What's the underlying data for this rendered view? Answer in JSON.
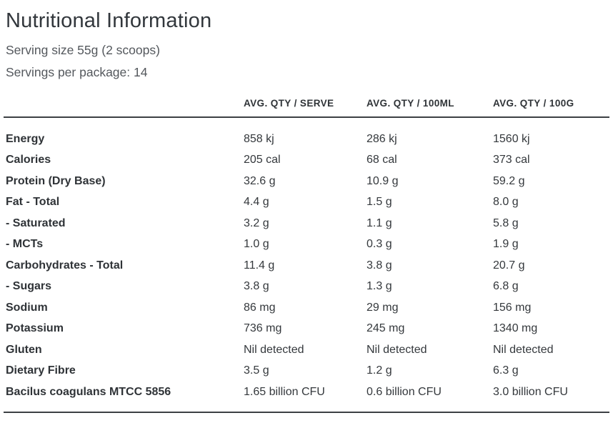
{
  "page": {
    "title": "Nutritional Information",
    "serving_size": "Serving size 55g (2 scoops)",
    "servings_per_package": "Servings per package: 14"
  },
  "table": {
    "columns": [
      "",
      "AVG. QTY / SERVE",
      "AVG. QTY / 100ML",
      "AVG. QTY / 100G"
    ],
    "rows": [
      {
        "label": "Energy",
        "serve": "858 kj",
        "per_100ml": "286 kj",
        "per_100g": "1560 kj"
      },
      {
        "label": "Calories",
        "serve": "205 cal",
        "per_100ml": "68 cal",
        "per_100g": "373 cal"
      },
      {
        "label": "Protein (Dry Base)",
        "serve": "32.6 g",
        "per_100ml": "10.9 g",
        "per_100g": "59.2 g"
      },
      {
        "label": "Fat - Total",
        "serve": "4.4 g",
        "per_100ml": "1.5 g",
        "per_100g": "8.0 g"
      },
      {
        "label": "- Saturated",
        "serve": "3.2 g",
        "per_100ml": "1.1 g",
        "per_100g": "5.8 g"
      },
      {
        "label": "- MCTs",
        "serve": "1.0 g",
        "per_100ml": "0.3 g",
        "per_100g": "1.9 g"
      },
      {
        "label": "Carbohydrates - Total",
        "serve": "11.4 g",
        "per_100ml": "3.8 g",
        "per_100g": "20.7 g"
      },
      {
        "label": "- Sugars",
        "serve": "3.8 g",
        "per_100ml": "1.3 g",
        "per_100g": "6.8 g"
      },
      {
        "label": "Sodium",
        "serve": "86 mg",
        "per_100ml": "29 mg",
        "per_100g": "156 mg"
      },
      {
        "label": "Potassium",
        "serve": "736 mg",
        "per_100ml": "245 mg",
        "per_100g": "1340 mg"
      },
      {
        "label": "Gluten",
        "serve": "Nil detected",
        "per_100ml": "Nil detected",
        "per_100g": "Nil detected"
      },
      {
        "label": "Dietary Fibre",
        "serve": "3.5 g",
        "per_100ml": "1.2 g",
        "per_100g": "6.3 g"
      },
      {
        "label": "Bacilus coagulans MTCC 5856",
        "serve": "1.65 billion CFU",
        "per_100ml": "0.6 billion CFU",
        "per_100g": "3.0 billion CFU"
      }
    ]
  },
  "colors": {
    "text_primary": "#2f3337",
    "text_secondary": "#54585d",
    "rule": "#3c4044",
    "background": "#ffffff"
  }
}
